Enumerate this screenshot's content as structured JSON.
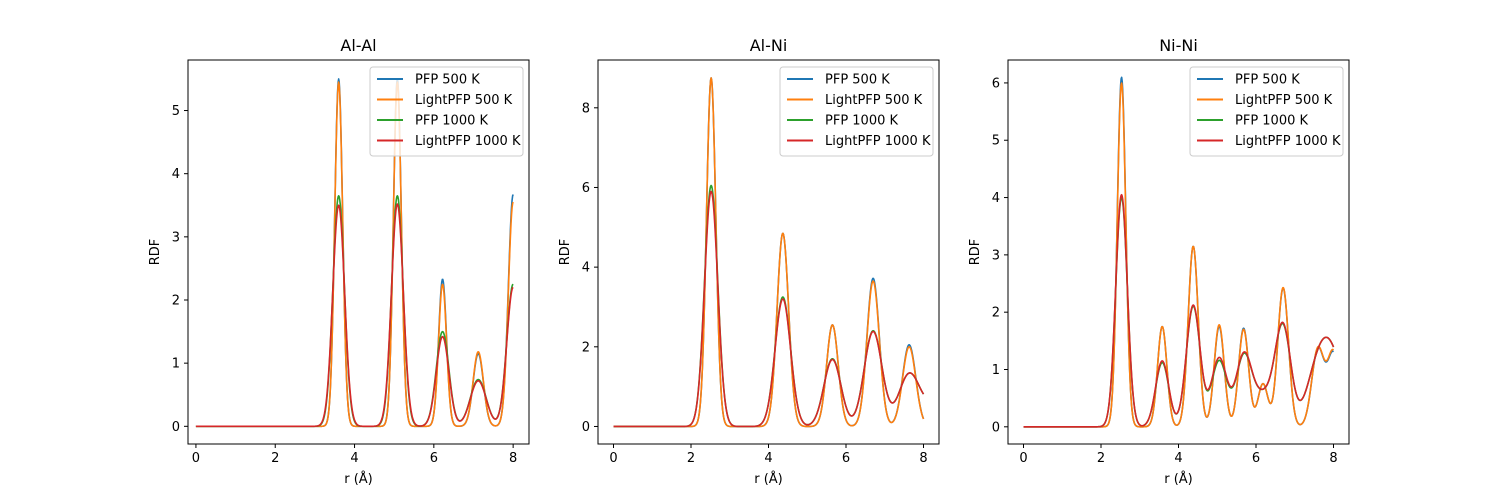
{
  "figure": {
    "background": "#ffffff"
  },
  "chart_data": [
    {
      "type": "line",
      "title": "Al-Al",
      "xlabel": "r (Å)",
      "ylabel": "RDF",
      "xlim": [
        -0.2,
        8.4
      ],
      "ylim": [
        -0.28,
        5.8
      ],
      "xticks": [
        "0",
        "2",
        "4",
        "6",
        "8"
      ],
      "xtick_values": [
        0,
        2,
        4,
        6,
        8
      ],
      "yticks": [
        "0",
        "1",
        "2",
        "3",
        "4",
        "5"
      ],
      "ytick_values": [
        0,
        1,
        2,
        3,
        4,
        5
      ],
      "grid": false,
      "legend": "top-right",
      "baseline": 0,
      "x_range": [
        0,
        8
      ],
      "series": [
        {
          "name": "PFP 500 K",
          "color": "#1f77b4",
          "peaks": [
            [
              3.6,
              5.5,
              0.1
            ],
            [
              5.08,
              5.5,
              0.1
            ],
            [
              6.22,
              2.33,
              0.1
            ],
            [
              7.12,
              1.15,
              0.13
            ],
            [
              8.0,
              3.67,
              0.12
            ]
          ]
        },
        {
          "name": "LightPFP 500 K",
          "color": "#ff7f0e",
          "peaks": [
            [
              3.6,
              5.45,
              0.1
            ],
            [
              5.08,
              5.45,
              0.1
            ],
            [
              6.22,
              2.25,
              0.1
            ],
            [
              7.12,
              1.18,
              0.13
            ],
            [
              8.0,
              3.55,
              0.12
            ]
          ]
        },
        {
          "name": "PFP 1000 K",
          "color": "#2ca02c",
          "peaks": [
            [
              3.6,
              3.65,
              0.145
            ],
            [
              5.08,
              3.65,
              0.145
            ],
            [
              6.22,
              1.5,
              0.16
            ],
            [
              7.12,
              0.74,
              0.2
            ],
            [
              8.0,
              2.25,
              0.16
            ]
          ]
        },
        {
          "name": "LightPFP 1000 K",
          "color": "#d62728",
          "peaks": [
            [
              3.6,
              3.5,
              0.15
            ],
            [
              5.08,
              3.52,
              0.15
            ],
            [
              6.22,
              1.42,
              0.16
            ],
            [
              7.12,
              0.72,
              0.2
            ],
            [
              8.0,
              2.2,
              0.16
            ]
          ]
        }
      ]
    },
    {
      "type": "line",
      "title": "Al-Ni",
      "xlabel": "r (Å)",
      "ylabel": "RDF",
      "xlim": [
        -0.4,
        8.4
      ],
      "ylim": [
        -0.44,
        9.2
      ],
      "xticks": [
        "0",
        "2",
        "4",
        "6",
        "8"
      ],
      "xtick_values": [
        0,
        2,
        4,
        6,
        8
      ],
      "yticks": [
        "0",
        "2",
        "4",
        "6",
        "8"
      ],
      "ytick_values": [
        0,
        2,
        4,
        6,
        8
      ],
      "grid": false,
      "legend": "top-right",
      "baseline": 0,
      "x_range": [
        0,
        8
      ],
      "series": [
        {
          "name": "PFP 500 K",
          "color": "#1f77b4",
          "peaks": [
            [
              2.52,
              8.75,
              0.12
            ],
            [
              4.37,
              4.85,
              0.15
            ],
            [
              5.65,
              2.55,
              0.15
            ],
            [
              6.7,
              3.72,
              0.16
            ],
            [
              7.63,
              2.05,
              0.17
            ]
          ]
        },
        {
          "name": "LightPFP 500 K",
          "color": "#ff7f0e",
          "peaks": [
            [
              2.52,
              8.75,
              0.12
            ],
            [
              4.37,
              4.85,
              0.15
            ],
            [
              5.65,
              2.55,
              0.15
            ],
            [
              6.7,
              3.65,
              0.16
            ],
            [
              7.63,
              2.0,
              0.17
            ]
          ]
        },
        {
          "name": "PFP 1000 K",
          "color": "#2ca02c",
          "peaks": [
            [
              2.52,
              6.05,
              0.17
            ],
            [
              4.37,
              3.25,
              0.2
            ],
            [
              5.65,
              1.7,
              0.22
            ],
            [
              6.7,
              2.4,
              0.23
            ],
            [
              7.63,
              1.3,
              0.27
            ],
            [
              8.3,
              0.5,
              0.3
            ]
          ]
        },
        {
          "name": "LightPFP 1000 K",
          "color": "#d62728",
          "peaks": [
            [
              2.52,
              5.9,
              0.17
            ],
            [
              4.37,
              3.2,
              0.2
            ],
            [
              5.65,
              1.68,
              0.22
            ],
            [
              6.7,
              2.38,
              0.23
            ],
            [
              7.63,
              1.3,
              0.27
            ],
            [
              8.3,
              0.5,
              0.3
            ]
          ]
        }
      ]
    },
    {
      "type": "line",
      "title": "Ni-Ni",
      "xlabel": "r (Å)",
      "ylabel": "RDF",
      "xlim": [
        -0.4,
        8.4
      ],
      "ylim": [
        -0.3,
        6.4
      ],
      "xticks": [
        "0",
        "2",
        "4",
        "6",
        "8"
      ],
      "xtick_values": [
        0,
        2,
        4,
        6,
        8
      ],
      "yticks": [
        "0",
        "1",
        "2",
        "3",
        "4",
        "5",
        "6"
      ],
      "ytick_values": [
        0,
        1,
        2,
        3,
        4,
        5,
        6
      ],
      "grid": false,
      "legend": "top-right",
      "baseline": 0,
      "x_range": [
        0,
        8
      ],
      "series": [
        {
          "name": "PFP 500 K",
          "color": "#1f77b4",
          "peaks": [
            [
              2.53,
              6.1,
              0.11
            ],
            [
              3.58,
              1.75,
              0.12
            ],
            [
              4.38,
              3.15,
              0.13
            ],
            [
              5.05,
              1.75,
              0.13
            ],
            [
              5.68,
              1.72,
              0.13
            ],
            [
              6.18,
              0.75,
              0.13
            ],
            [
              6.7,
              2.42,
              0.14
            ],
            [
              7.6,
              1.35,
              0.16
            ],
            [
              8.0,
              1.25,
              0.15
            ]
          ]
        },
        {
          "name": "LightPFP 500 K",
          "color": "#ff7f0e",
          "peaks": [
            [
              2.53,
              6.0,
              0.11
            ],
            [
              3.58,
              1.75,
              0.12
            ],
            [
              4.38,
              3.15,
              0.13
            ],
            [
              5.05,
              1.78,
              0.13
            ],
            [
              5.68,
              1.7,
              0.13
            ],
            [
              6.18,
              0.75,
              0.13
            ],
            [
              6.7,
              2.43,
              0.14
            ],
            [
              7.6,
              1.36,
              0.16
            ],
            [
              8.0,
              1.28,
              0.15
            ]
          ]
        },
        {
          "name": "PFP 1000 K",
          "color": "#2ca02c",
          "peaks": [
            [
              2.53,
              4.0,
              0.15
            ],
            [
              3.58,
              1.12,
              0.17
            ],
            [
              4.38,
              2.1,
              0.18
            ],
            [
              5.05,
              1.15,
              0.2
            ],
            [
              5.68,
              1.15,
              0.2
            ],
            [
              6.2,
              0.55,
              0.3
            ],
            [
              6.7,
              1.65,
              0.2
            ],
            [
              7.6,
              0.95,
              0.3
            ],
            [
              8.0,
              1.0,
              0.3
            ]
          ]
        },
        {
          "name": "LightPFP 1000 K",
          "color": "#d62728",
          "peaks": [
            [
              2.53,
              4.05,
              0.15
            ],
            [
              3.58,
              1.15,
              0.17
            ],
            [
              4.38,
              2.12,
              0.18
            ],
            [
              5.05,
              1.2,
              0.2
            ],
            [
              5.68,
              1.17,
              0.2
            ],
            [
              6.2,
              0.55,
              0.3
            ],
            [
              6.7,
              1.67,
              0.2
            ],
            [
              7.6,
              0.95,
              0.3
            ],
            [
              8.0,
              1.0,
              0.3
            ]
          ]
        }
      ]
    }
  ]
}
